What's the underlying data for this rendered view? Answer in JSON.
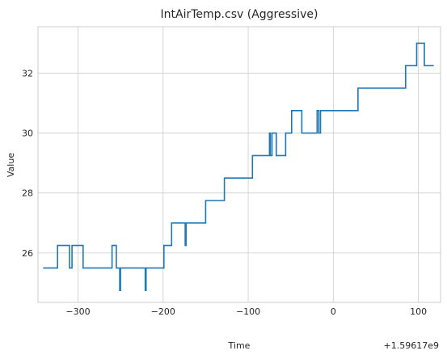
{
  "chart_data": {
    "type": "line",
    "title": "IntAirTemp.csv (Aggressive)",
    "xlabel": "Time",
    "ylabel": "Value",
    "offset_label": "+1.59617e9",
    "xlim": [
      -347,
      126
    ],
    "ylim": [
      24.35,
      33.55
    ],
    "xticks": [
      -300,
      -200,
      -100,
      0,
      100
    ],
    "xtick_labels": [
      "−300",
      "−200",
      "−100",
      "0",
      "100"
    ],
    "yticks": [
      26,
      28,
      30,
      32
    ],
    "ytick_labels": [
      "26",
      "28",
      "30",
      "32"
    ],
    "grid": true,
    "color": "#1f77b4",
    "series": [
      {
        "name": "IntAirTemp",
        "x": [
          -341,
          -324,
          -324,
          -310,
          -310,
          -307,
          -307,
          -304,
          -304,
          -294,
          -294,
          -260,
          -260,
          -255,
          -255,
          -251,
          -251,
          -250,
          -250,
          -221,
          -221,
          -220,
          -220,
          -199,
          -199,
          -190,
          -190,
          -174,
          -174,
          -173,
          -173,
          -172,
          -172,
          -150,
          -150,
          -128,
          -128,
          -95,
          -95,
          -75,
          -75,
          -74,
          -74,
          -72,
          -72,
          -67,
          -67,
          -56,
          -56,
          -49,
          -49,
          -37,
          -37,
          -19,
          -19,
          -17,
          -17,
          -15,
          -15,
          29,
          29,
          85,
          85,
          98,
          98,
          107,
          107,
          118
        ],
        "y": [
          25.5,
          25.5,
          26.25,
          26.25,
          25.5,
          25.5,
          26.25,
          26.25,
          26.25,
          26.25,
          25.5,
          25.5,
          26.25,
          26.25,
          25.5,
          25.5,
          24.75,
          24.75,
          25.5,
          25.5,
          24.75,
          24.75,
          25.5,
          25.5,
          26.25,
          26.25,
          27.0,
          27.0,
          26.25,
          26.25,
          27.0,
          27.0,
          27.0,
          27.0,
          27.75,
          27.75,
          28.5,
          28.5,
          29.25,
          29.25,
          30.0,
          30.0,
          29.25,
          29.25,
          30.0,
          30.0,
          29.25,
          29.25,
          30.0,
          30.0,
          30.75,
          30.75,
          30.0,
          30.0,
          30.75,
          30.75,
          30.0,
          30.0,
          30.75,
          30.75,
          31.5,
          31.5,
          32.25,
          32.25,
          33.0,
          33.0,
          32.25,
          32.25
        ]
      }
    ]
  }
}
